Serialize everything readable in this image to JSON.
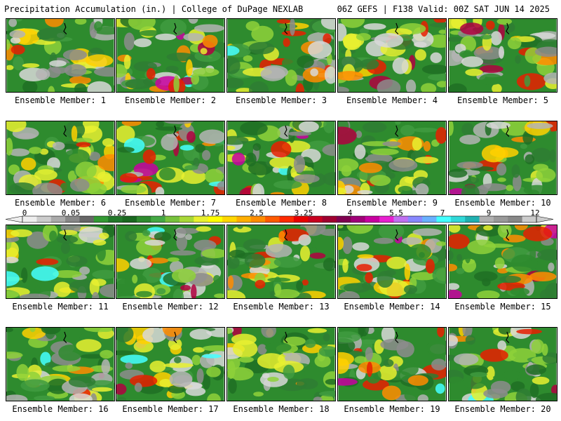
{
  "header": {
    "title_left": "Precipitation Accumulation (in.) | College of DuPage NEXLAB",
    "title_right": "06Z GEFS | F138 Valid: 00Z SAT JUN 14 2025"
  },
  "members": [
    {
      "label": "Ensemble Member: 1"
    },
    {
      "label": "Ensemble Member: 2"
    },
    {
      "label": "Ensemble Member: 3"
    },
    {
      "label": "Ensemble Member: 4"
    },
    {
      "label": "Ensemble Member: 5"
    },
    {
      "label": "Ensemble Member: 6"
    },
    {
      "label": "Ensemble Member: 7"
    },
    {
      "label": "Ensemble Member: 8"
    },
    {
      "label": "Ensemble Member: 9"
    },
    {
      "label": "Ensemble Member: 10"
    },
    {
      "label": "Ensemble Member: 11"
    },
    {
      "label": "Ensemble Member: 12"
    },
    {
      "label": "Ensemble Member: 13"
    },
    {
      "label": "Ensemble Member: 14"
    },
    {
      "label": "Ensemble Member: 15"
    },
    {
      "label": "Ensemble Member: 16"
    },
    {
      "label": "Ensemble Member: 17"
    },
    {
      "label": "Ensemble Member: 18"
    },
    {
      "label": "Ensemble Member: 19"
    },
    {
      "label": "Ensemble Member: 20"
    }
  ],
  "legend": {
    "tick_labels": [
      "0",
      "0.05",
      "0.25",
      "1",
      "1.75",
      "2.5",
      "3.25",
      "4",
      "5.5",
      "7",
      "9",
      "12"
    ],
    "colors": [
      "#eeeeee",
      "#cccccc",
      "#aaaaaa",
      "#888888",
      "#666666",
      "#339933",
      "#22782a",
      "#1a6820",
      "#2e8b2e",
      "#44a844",
      "#77c23c",
      "#a8d838",
      "#e8f030",
      "#ffff00",
      "#ffd700",
      "#ffae00",
      "#ff8c00",
      "#ff5a00",
      "#ff2a00",
      "#e80000",
      "#c80020",
      "#a00030",
      "#800050",
      "#a00078",
      "#c800a0",
      "#e820d0",
      "#c070f0",
      "#8888ff",
      "#6ab0ff",
      "#44ffff",
      "#30d8d8",
      "#20b0b0",
      "#b0b0b0",
      "#999999",
      "#888888",
      "#cccccc"
    ]
  }
}
